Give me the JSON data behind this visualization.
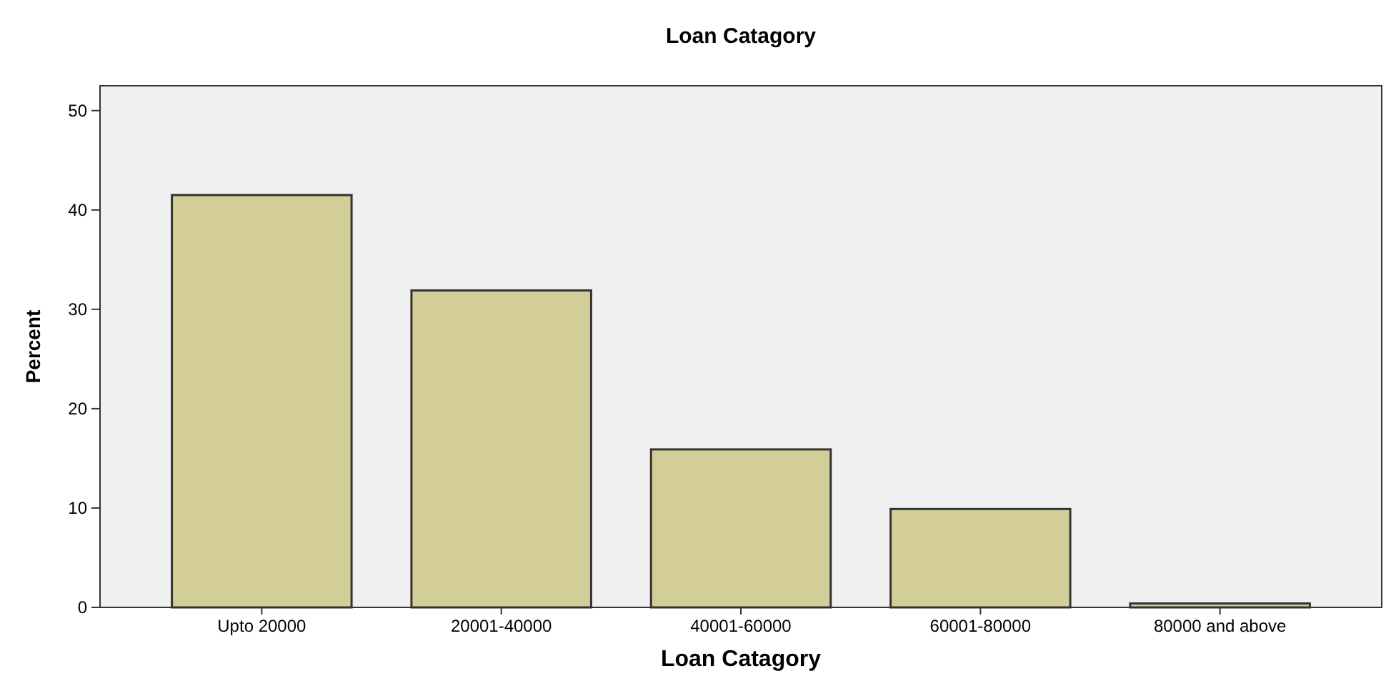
{
  "chart_data": {
    "type": "bar",
    "title": "Loan Catagory",
    "xlabel": "Loan Catagory",
    "ylabel": "Percent",
    "categories": [
      "Upto 20000",
      "20001-40000",
      "40001-60000",
      "60001-80000",
      "80000 and above"
    ],
    "values": [
      41.5,
      31.9,
      15.9,
      9.9,
      0.4
    ],
    "color": "#d3ce97",
    "ylim": [
      0,
      52.5
    ],
    "yticks": [
      0,
      10,
      20,
      30,
      40,
      50
    ],
    "grid": false
  }
}
